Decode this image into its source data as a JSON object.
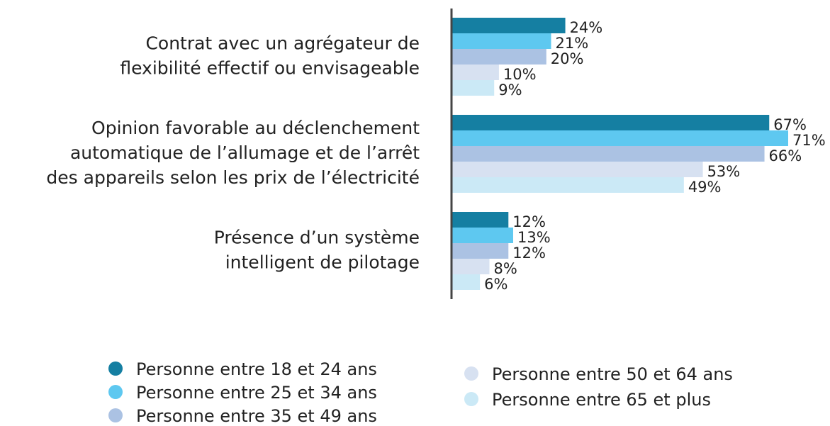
{
  "chart_data": {
    "type": "bar",
    "orientation": "horizontal",
    "categories": [
      [
        "Contrat avec un agrégateur de",
        "flexibilité effectif ou envisageable"
      ],
      [
        "Opinion favorable au déclenchement",
        "automatique de l’allumage et de l’arrêt",
        "des appareils selon les prix de l’électricité"
      ],
      [
        "Présence d’un système",
        "intelligent de pilotage"
      ]
    ],
    "series": [
      {
        "name": "Personne entre 18 et 24 ans",
        "color": "#157fa2",
        "values": [
          24,
          67,
          12
        ],
        "value_labels": [
          "24%",
          "67%",
          "12%"
        ]
      },
      {
        "name": "Personne entre 25 et 34 ans",
        "color": "#5ec8f0",
        "values": [
          21,
          71,
          13
        ],
        "value_labels": [
          "21%",
          "71%",
          "13%"
        ]
      },
      {
        "name": "Personne entre 35 et 49 ans",
        "color": "#abc2e3",
        "values": [
          20,
          66,
          12
        ],
        "value_labels": [
          "20%",
          "66%",
          "12%"
        ]
      },
      {
        "name": "Personne entre 50 et 64 ans",
        "color": "#d7e1f1",
        "values": [
          10,
          53,
          8
        ],
        "value_labels": [
          "10%",
          "53%",
          "8%"
        ]
      },
      {
        "name": "Personne entre 65 et plus",
        "color": "#cbe9f6",
        "values": [
          9,
          49,
          6
        ],
        "value_labels": [
          "9%",
          "49%",
          "6%"
        ]
      }
    ]
  }
}
